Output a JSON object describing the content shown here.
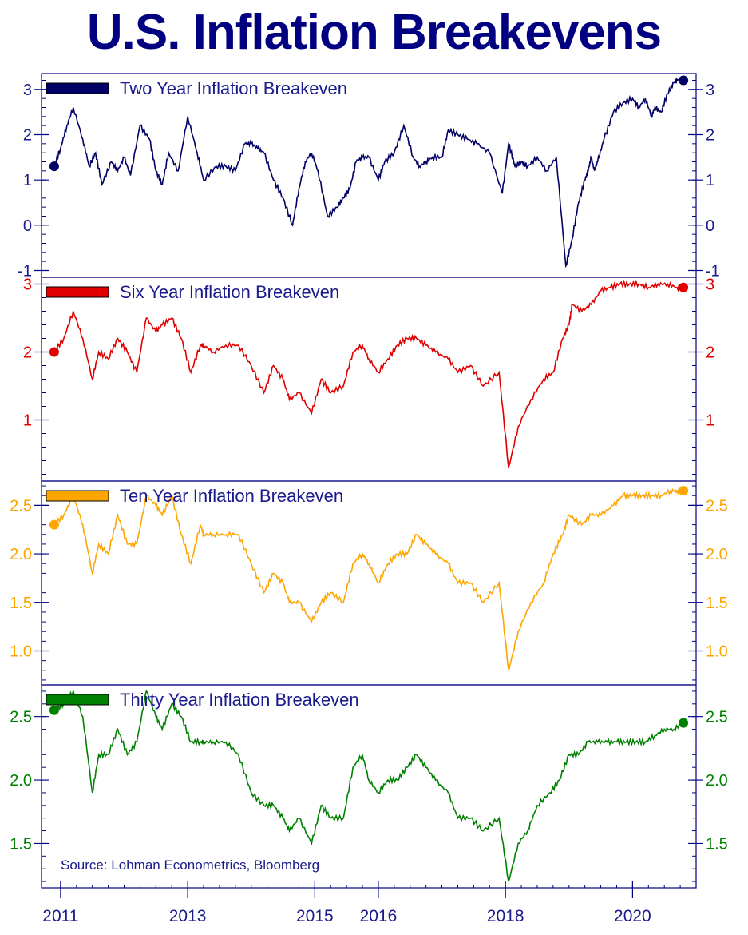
{
  "title": "U.S. Inflation Breakevens",
  "source": "Source: Lohman Econometrics, Bloomberg",
  "colors": {
    "frame": "#000080",
    "text": "#1a1a8c"
  },
  "chart_data": [
    {
      "type": "line",
      "name": "two-year",
      "legend": "Two Year Inflation Breakeven",
      "color": "#000066",
      "tick_color": "#1a1a8c",
      "ylim": [
        -1.15,
        3.35
      ],
      "yticks": [
        3,
        2,
        1,
        0,
        -1
      ],
      "ytick_labels": [
        "3",
        "2",
        "1",
        "0",
        "-1"
      ],
      "x": [
        2010.9,
        2011.0,
        2011.1,
        2011.2,
        2011.35,
        2011.45,
        2011.55,
        2011.65,
        2011.8,
        2011.9,
        2012.0,
        2012.1,
        2012.25,
        2012.4,
        2012.5,
        2012.6,
        2012.7,
        2012.85,
        2013.0,
        2013.15,
        2013.25,
        2013.45,
        2013.6,
        2013.75,
        2013.9,
        2014.0,
        2014.1,
        2014.2,
        2014.35,
        2014.5,
        2014.65,
        2014.75,
        2014.85,
        2014.95,
        2015.05,
        2015.2,
        2015.35,
        2015.45,
        2015.55,
        2015.65,
        2015.75,
        2015.85,
        2016.0,
        2016.1,
        2016.25,
        2016.4,
        2016.55,
        2016.65,
        2016.75,
        2016.85,
        2017.0,
        2017.1,
        2017.25,
        2017.4,
        2017.55,
        2017.75,
        2017.95,
        2018.05,
        2018.15,
        2018.25,
        2018.35,
        2018.5,
        2018.65,
        2018.8,
        2018.95,
        2019.05,
        2019.15,
        2019.25,
        2019.3,
        2019.35,
        2019.4,
        2019.45,
        2019.55,
        2019.7,
        2019.85,
        2020.0,
        2020.1,
        2020.2,
        2020.3,
        2020.35,
        2020.45,
        2020.55,
        2020.65,
        2020.7,
        2020.8
      ],
      "values": [
        1.3,
        1.7,
        2.2,
        2.6,
        1.9,
        1.3,
        1.6,
        0.9,
        1.4,
        1.2,
        1.5,
        1.1,
        2.2,
        1.9,
        1.2,
        0.9,
        1.6,
        1.2,
        2.4,
        1.6,
        1.0,
        1.3,
        1.3,
        1.2,
        1.8,
        1.8,
        1.7,
        1.6,
        1.0,
        0.6,
        0.0,
        0.8,
        1.4,
        1.6,
        1.2,
        0.2,
        0.4,
        0.6,
        0.8,
        1.4,
        1.5,
        1.5,
        1.0,
        1.4,
        1.6,
        2.2,
        1.5,
        1.3,
        1.4,
        1.5,
        1.5,
        2.1,
        2.0,
        1.9,
        1.8,
        1.6,
        0.7,
        1.8,
        1.3,
        1.4,
        1.3,
        1.5,
        1.2,
        1.5,
        -0.9,
        -0.3,
        0.5,
        1.0,
        1.2,
        1.5,
        1.2,
        1.4,
        1.9,
        2.5,
        2.7,
        2.8,
        2.6,
        2.8,
        2.4,
        2.6,
        2.5,
        2.9,
        3.15,
        3.2,
        3.2
      ]
    },
    {
      "type": "line",
      "name": "six-year",
      "legend": "Six Year Inflation Breakeven",
      "color": "#e00000",
      "tick_color": "#e00000",
      "ylim": [
        0.1,
        3.1
      ],
      "yticks": [
        3,
        2,
        1
      ],
      "ytick_labels": [
        "3",
        "2",
        "1"
      ],
      "x": [
        2010.9,
        2011.05,
        2011.2,
        2011.35,
        2011.5,
        2011.6,
        2011.75,
        2011.9,
        2012.05,
        2012.2,
        2012.35,
        2012.5,
        2012.6,
        2012.75,
        2012.9,
        2013.05,
        2013.2,
        2013.25,
        2013.4,
        2013.6,
        2013.8,
        2014.0,
        2014.2,
        2014.35,
        2014.5,
        2014.6,
        2014.75,
        2014.95,
        2015.1,
        2015.25,
        2015.45,
        2015.6,
        2015.75,
        2015.85,
        2016.0,
        2016.15,
        2016.3,
        2016.45,
        2016.6,
        2016.75,
        2016.9,
        2017.1,
        2017.25,
        2017.45,
        2017.65,
        2017.9,
        2018.05,
        2018.2,
        2018.4,
        2018.6,
        2018.75,
        2018.9,
        2019.0,
        2019.05,
        2019.2,
        2019.35,
        2019.5,
        2019.65,
        2019.8,
        2019.95,
        2020.1,
        2020.25,
        2020.4,
        2020.55,
        2020.7,
        2020.8
      ],
      "values": [
        2.0,
        2.2,
        2.6,
        2.2,
        1.6,
        2.0,
        1.9,
        2.2,
        2.0,
        1.7,
        2.5,
        2.3,
        2.4,
        2.5,
        2.2,
        1.7,
        2.1,
        2.1,
        2.0,
        2.1,
        2.1,
        1.8,
        1.4,
        1.8,
        1.6,
        1.3,
        1.4,
        1.1,
        1.6,
        1.4,
        1.5,
        2.0,
        2.1,
        1.9,
        1.7,
        1.9,
        2.1,
        2.2,
        2.2,
        2.1,
        2.0,
        1.9,
        1.7,
        1.8,
        1.5,
        1.7,
        0.3,
        0.9,
        1.3,
        1.6,
        1.7,
        2.2,
        2.4,
        2.7,
        2.6,
        2.7,
        2.9,
        2.95,
        3.0,
        3.0,
        3.0,
        2.95,
        3.0,
        3.0,
        2.95,
        2.95
      ]
    },
    {
      "type": "line",
      "name": "ten-year",
      "legend": "Ten Year Inflation Breakeven",
      "color": "#ffa500",
      "tick_color": "#ffa500",
      "ylim": [
        0.65,
        2.75
      ],
      "yticks": [
        2.5,
        2.0,
        1.5,
        1.0
      ],
      "ytick_labels": [
        "2.5",
        "2.0",
        "1.5",
        "1.0"
      ],
      "x": [
        2010.9,
        2011.05,
        2011.2,
        2011.35,
        2011.5,
        2011.6,
        2011.75,
        2011.9,
        2012.05,
        2012.2,
        2012.35,
        2012.5,
        2012.6,
        2012.75,
        2012.9,
        2013.05,
        2013.2,
        2013.25,
        2013.4,
        2013.6,
        2013.8,
        2014.0,
        2014.2,
        2014.35,
        2014.5,
        2014.6,
        2014.75,
        2014.95,
        2015.1,
        2015.25,
        2015.45,
        2015.6,
        2015.75,
        2015.85,
        2016.0,
        2016.15,
        2016.3,
        2016.45,
        2016.6,
        2016.75,
        2016.9,
        2017.1,
        2017.25,
        2017.45,
        2017.65,
        2017.9,
        2018.05,
        2018.2,
        2018.4,
        2018.6,
        2018.75,
        2018.9,
        2019.0,
        2019.2,
        2019.35,
        2019.5,
        2019.7,
        2019.85,
        2020.0,
        2020.15,
        2020.3,
        2020.45,
        2020.6,
        2020.7,
        2020.8
      ],
      "values": [
        2.3,
        2.4,
        2.6,
        2.3,
        1.8,
        2.1,
        2.0,
        2.4,
        2.1,
        2.1,
        2.6,
        2.5,
        2.4,
        2.6,
        2.2,
        1.9,
        2.3,
        2.2,
        2.2,
        2.2,
        2.2,
        1.9,
        1.6,
        1.8,
        1.7,
        1.5,
        1.5,
        1.3,
        1.5,
        1.6,
        1.5,
        1.9,
        2.0,
        1.9,
        1.7,
        1.9,
        2.0,
        2.0,
        2.2,
        2.1,
        2.0,
        1.9,
        1.7,
        1.7,
        1.5,
        1.7,
        0.8,
        1.2,
        1.5,
        1.7,
        2.0,
        2.2,
        2.4,
        2.3,
        2.4,
        2.4,
        2.5,
        2.6,
        2.6,
        2.6,
        2.6,
        2.6,
        2.65,
        2.65,
        2.65
      ]
    },
    {
      "type": "line",
      "name": "thirty-year",
      "legend": "Thirty Year Inflation Breakeven",
      "color": "#008000",
      "tick_color": "#008000",
      "ylim": [
        1.15,
        2.75
      ],
      "yticks": [
        2.5,
        2.0,
        1.5
      ],
      "ytick_labels": [
        "2.5",
        "2.0",
        "1.5"
      ],
      "x": [
        2010.9,
        2011.05,
        2011.2,
        2011.35,
        2011.5,
        2011.6,
        2011.75,
        2011.9,
        2012.05,
        2012.2,
        2012.35,
        2012.5,
        2012.6,
        2012.75,
        2012.9,
        2013.05,
        2013.2,
        2013.25,
        2013.4,
        2013.6,
        2013.8,
        2014.0,
        2014.2,
        2014.35,
        2014.5,
        2014.6,
        2014.75,
        2014.95,
        2015.1,
        2015.25,
        2015.45,
        2015.6,
        2015.75,
        2015.85,
        2016.0,
        2016.15,
        2016.3,
        2016.45,
        2016.6,
        2016.75,
        2016.9,
        2017.1,
        2017.25,
        2017.45,
        2017.65,
        2017.9,
        2018.05,
        2018.2,
        2018.35,
        2018.5,
        2018.7,
        2018.85,
        2019.0,
        2019.15,
        2019.3,
        2019.45,
        2019.6,
        2019.75,
        2019.9,
        2020.05,
        2020.2,
        2020.35,
        2020.5,
        2020.65,
        2020.8
      ],
      "values": [
        2.55,
        2.6,
        2.7,
        2.5,
        1.9,
        2.2,
        2.2,
        2.4,
        2.2,
        2.3,
        2.7,
        2.5,
        2.4,
        2.6,
        2.5,
        2.3,
        2.3,
        2.3,
        2.3,
        2.3,
        2.2,
        1.9,
        1.8,
        1.8,
        1.7,
        1.6,
        1.7,
        1.5,
        1.8,
        1.7,
        1.7,
        2.1,
        2.2,
        2.0,
        1.9,
        2.0,
        2.0,
        2.1,
        2.2,
        2.1,
        2.0,
        1.9,
        1.7,
        1.7,
        1.6,
        1.7,
        1.2,
        1.5,
        1.6,
        1.8,
        1.9,
        2.0,
        2.2,
        2.2,
        2.3,
        2.3,
        2.3,
        2.3,
        2.3,
        2.3,
        2.3,
        2.35,
        2.4,
        2.4,
        2.45
      ]
    }
  ],
  "x_axis": {
    "ticks": [
      2011.0,
      2013.0,
      2015.0,
      2016.0,
      2018.0,
      2020.0
    ],
    "tick_labels": [
      "2011",
      "2013",
      "2015",
      "2016",
      "2018",
      "2020"
    ],
    "xlim": [
      2010.7,
      2021.0
    ]
  }
}
